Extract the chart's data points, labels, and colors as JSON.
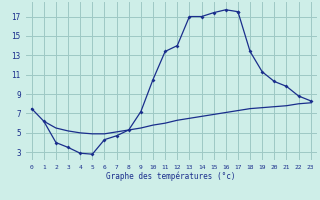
{
  "title": "Graphe des températures (°c)",
  "bg_color": "#ceeee8",
  "grid_color": "#9ec8c4",
  "line_color": "#1a2e8c",
  "x_ticks": [
    0,
    1,
    2,
    3,
    4,
    5,
    6,
    7,
    8,
    9,
    10,
    11,
    12,
    13,
    14,
    15,
    16,
    17,
    18,
    19,
    20,
    21,
    22,
    23
  ],
  "y_ticks": [
    3,
    5,
    7,
    9,
    11,
    13,
    15,
    17
  ],
  "xlim": [
    -0.5,
    23.5
  ],
  "ylim": [
    2.2,
    18.5
  ],
  "curve1_x": [
    0,
    1,
    2,
    3,
    4,
    5,
    6,
    7,
    8,
    9,
    10,
    11,
    12,
    13,
    14,
    15,
    16,
    17
  ],
  "curve1_y": [
    7.5,
    6.2,
    4.0,
    3.5,
    2.9,
    2.8,
    4.3,
    4.7,
    5.3,
    7.2,
    10.5,
    13.4,
    14.0,
    17.0,
    17.0,
    17.4,
    17.7,
    17.5
  ],
  "curve2_x": [
    17,
    18,
    19,
    20,
    21,
    22,
    23
  ],
  "curve2_y": [
    17.5,
    13.4,
    11.3,
    10.3,
    9.8,
    8.8,
    8.3
  ],
  "curve3_x": [
    1,
    2,
    3,
    4,
    5,
    6,
    7,
    8,
    9,
    10,
    11,
    12,
    13,
    14,
    15,
    16,
    17,
    18,
    19,
    20,
    21,
    22,
    23
  ],
  "curve3_y": [
    6.2,
    5.5,
    5.2,
    5.0,
    4.9,
    4.9,
    5.1,
    5.3,
    5.5,
    5.8,
    6.0,
    6.3,
    6.5,
    6.7,
    6.9,
    7.1,
    7.3,
    7.5,
    7.6,
    7.7,
    7.8,
    8.0,
    8.1
  ]
}
